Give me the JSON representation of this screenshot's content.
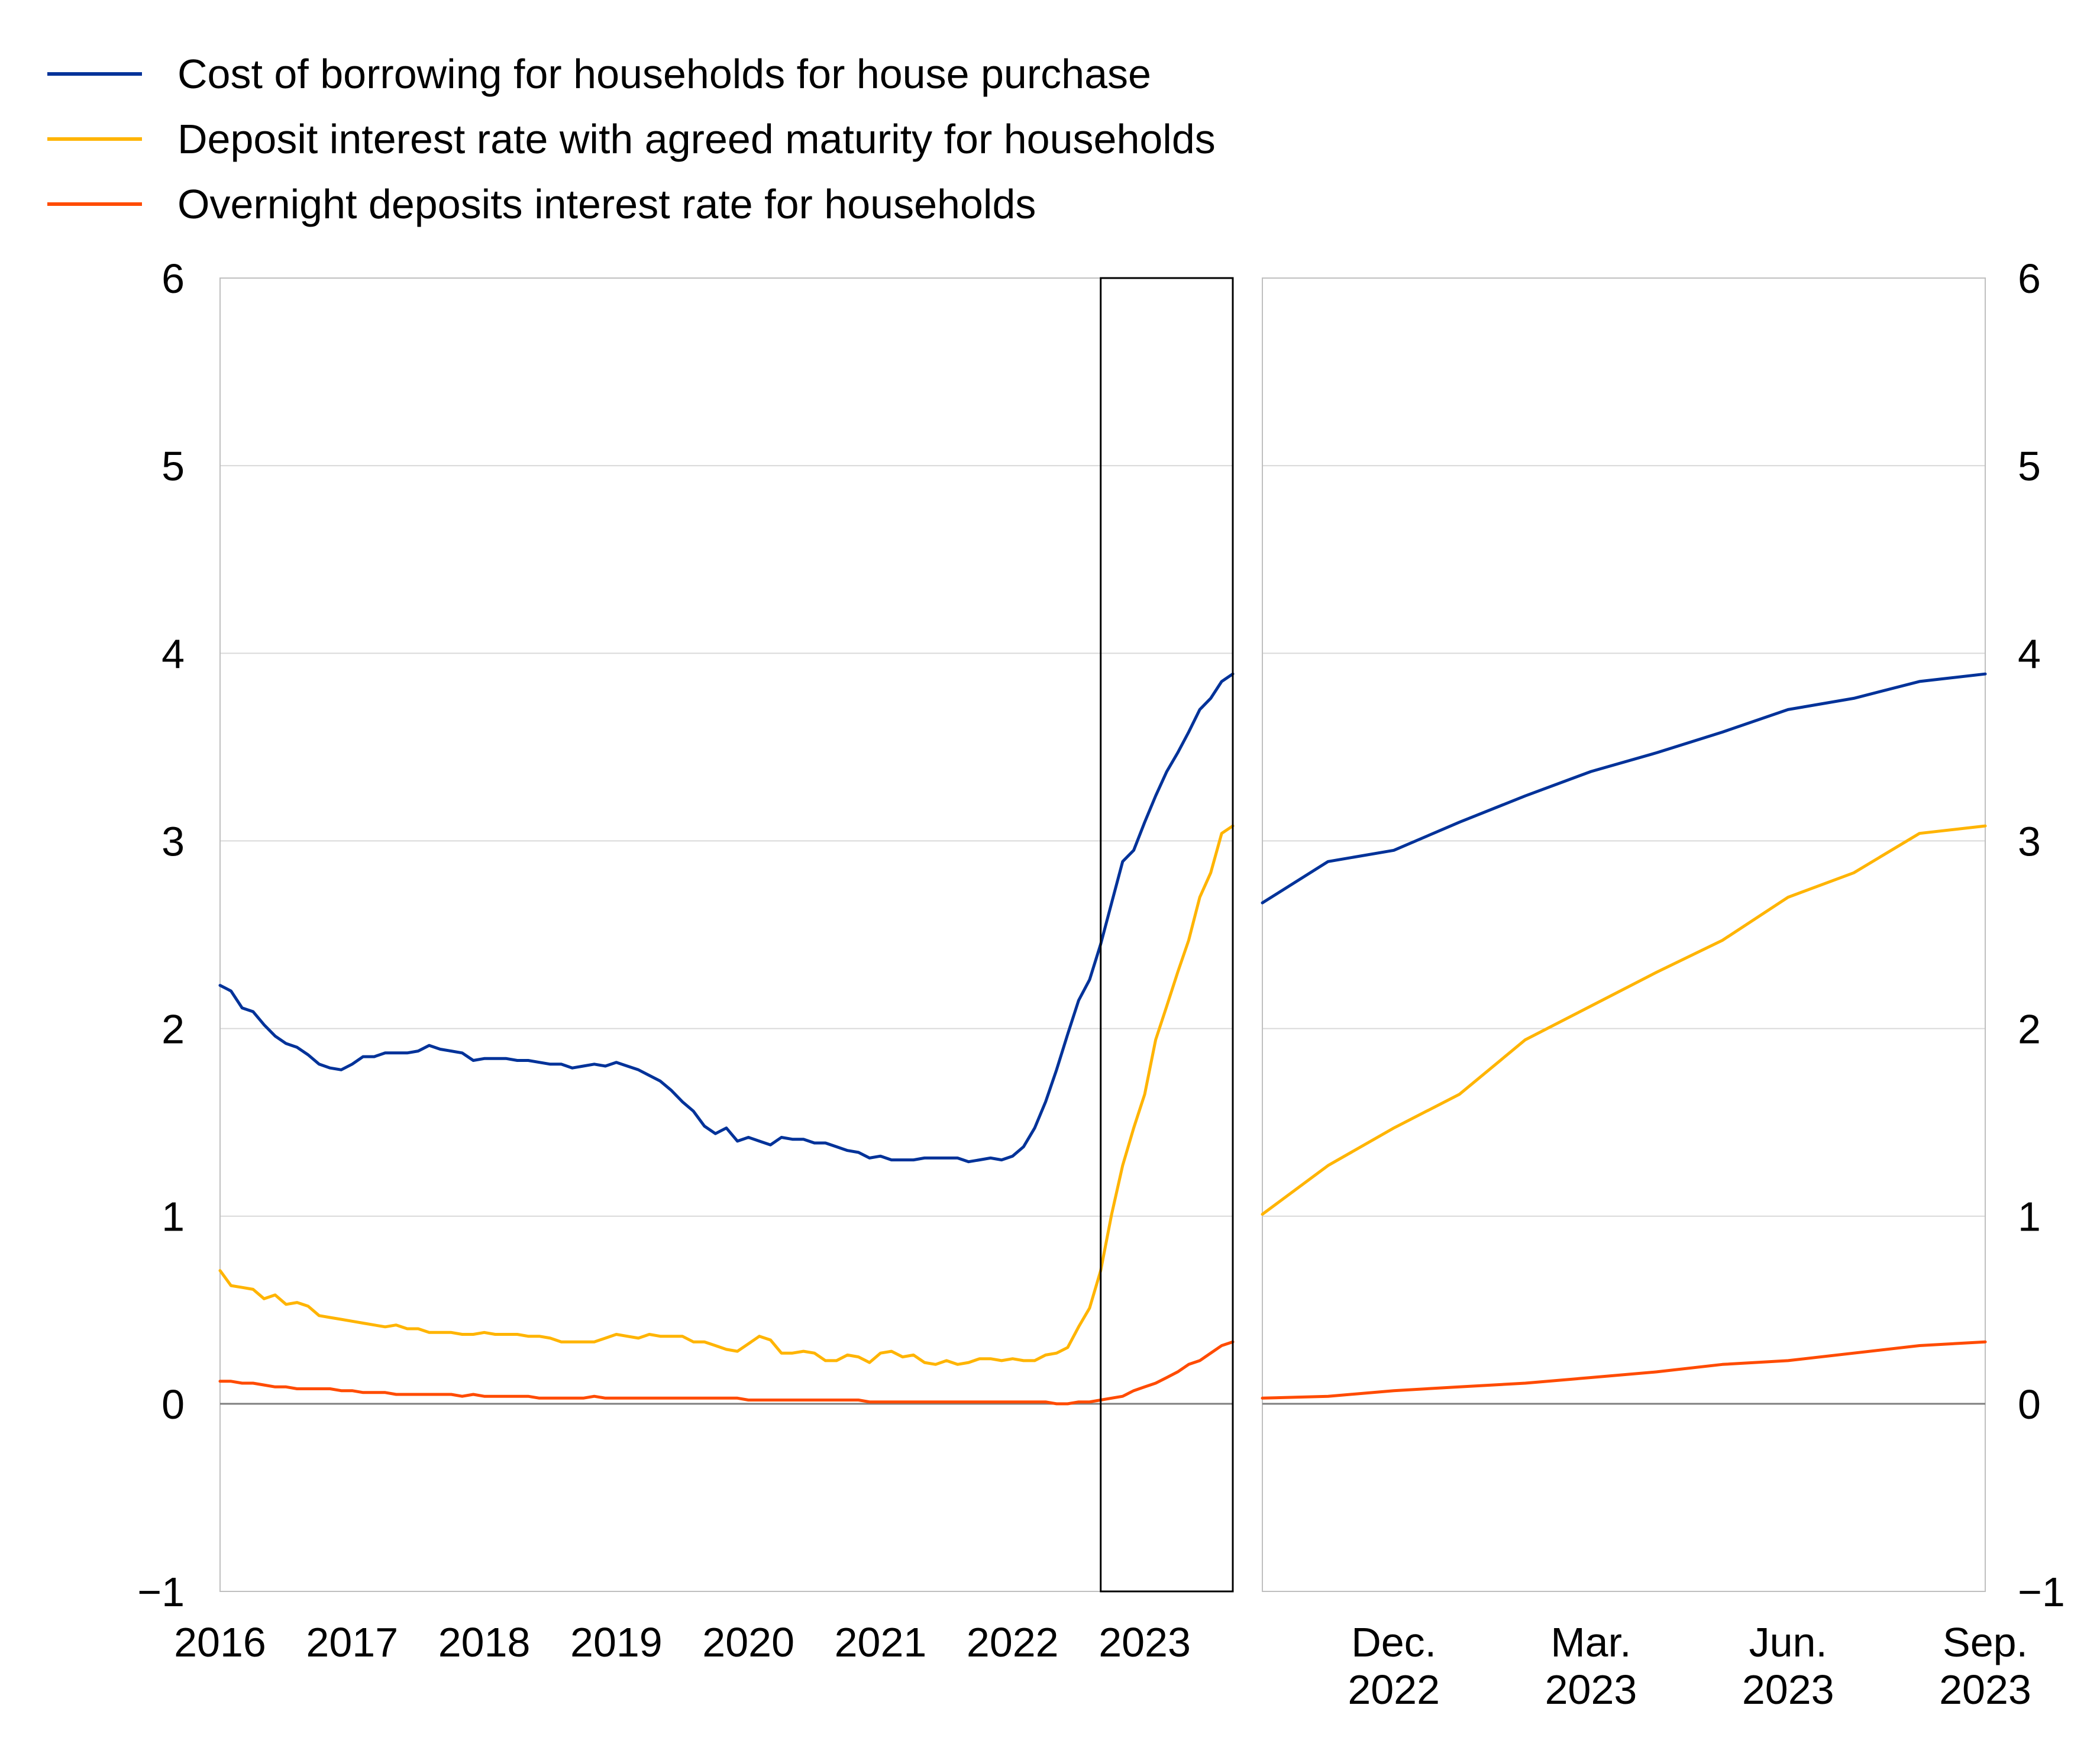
{
  "legend": [
    {
      "label": "Cost of borrowing for households for house purchase",
      "color": "#003299"
    },
    {
      "label": "Deposit interest rate with agreed maturity for households",
      "color": "#FFB400"
    },
    {
      "label": "Overnight deposits interest rate for households",
      "color": "#FF4B00"
    }
  ],
  "chart_data": [
    {
      "type": "line",
      "title": "",
      "ylim": [
        -1,
        6
      ],
      "yticks": [
        "−1",
        "0",
        "1",
        "2",
        "3",
        "4",
        "5",
        "6"
      ],
      "xlim": [
        2016.0,
        2023.667
      ],
      "xticks": [
        "2016",
        "2017",
        "2018",
        "2019",
        "2020",
        "2021",
        "2022",
        "2023"
      ],
      "grid": true,
      "legend_position": "top-left",
      "highlight_box": {
        "x_from": 2022.667,
        "x_to": 2023.667
      },
      "series": [
        {
          "name": "Cost of borrowing for households for house purchase",
          "color": "#003299",
          "x": [
            2016.0,
            2016.083,
            2016.167,
            2016.25,
            2016.333,
            2016.417,
            2016.5,
            2016.583,
            2016.667,
            2016.75,
            2016.833,
            2016.917,
            2017.0,
            2017.083,
            2017.167,
            2017.25,
            2017.333,
            2017.417,
            2017.5,
            2017.583,
            2017.667,
            2017.75,
            2017.833,
            2017.917,
            2018.0,
            2018.083,
            2018.167,
            2018.25,
            2018.333,
            2018.417,
            2018.5,
            2018.583,
            2018.667,
            2018.75,
            2018.833,
            2018.917,
            2019.0,
            2019.083,
            2019.167,
            2019.25,
            2019.333,
            2019.417,
            2019.5,
            2019.583,
            2019.667,
            2019.75,
            2019.833,
            2019.917,
            2020.0,
            2020.083,
            2020.167,
            2020.25,
            2020.333,
            2020.417,
            2020.5,
            2020.583,
            2020.667,
            2020.75,
            2020.833,
            2020.917,
            2021.0,
            2021.083,
            2021.167,
            2021.25,
            2021.333,
            2021.417,
            2021.5,
            2021.583,
            2021.667,
            2021.75,
            2021.833,
            2021.917,
            2022.0,
            2022.083,
            2022.167,
            2022.25,
            2022.333,
            2022.417,
            2022.5,
            2022.583,
            2022.667,
            2022.75,
            2022.833,
            2022.917,
            2023.0,
            2023.083,
            2023.167,
            2023.25,
            2023.333,
            2023.417,
            2023.5,
            2023.583,
            2023.667
          ],
          "y": [
            2.23,
            2.2,
            2.11,
            2.09,
            2.02,
            1.96,
            1.92,
            1.9,
            1.86,
            1.81,
            1.79,
            1.78,
            1.81,
            1.85,
            1.85,
            1.87,
            1.87,
            1.87,
            1.88,
            1.91,
            1.89,
            1.88,
            1.87,
            1.83,
            1.84,
            1.84,
            1.84,
            1.83,
            1.83,
            1.82,
            1.81,
            1.81,
            1.79,
            1.8,
            1.81,
            1.8,
            1.82,
            1.8,
            1.78,
            1.75,
            1.72,
            1.67,
            1.61,
            1.56,
            1.48,
            1.44,
            1.47,
            1.4,
            1.42,
            1.4,
            1.38,
            1.42,
            1.41,
            1.41,
            1.39,
            1.39,
            1.37,
            1.35,
            1.34,
            1.31,
            1.32,
            1.3,
            1.3,
            1.3,
            1.31,
            1.31,
            1.31,
            1.31,
            1.29,
            1.3,
            1.31,
            1.3,
            1.32,
            1.37,
            1.47,
            1.61,
            1.78,
            1.97,
            2.15,
            2.26,
            2.45,
            2.67,
            2.89,
            2.95,
            3.1,
            3.24,
            3.37,
            3.47,
            3.58,
            3.7,
            3.76,
            3.85,
            3.89
          ]
        },
        {
          "name": "Deposit interest rate with agreed maturity for households",
          "color": "#FFB400",
          "x": [
            2016.0,
            2016.083,
            2016.167,
            2016.25,
            2016.333,
            2016.417,
            2016.5,
            2016.583,
            2016.667,
            2016.75,
            2016.833,
            2016.917,
            2017.0,
            2017.083,
            2017.167,
            2017.25,
            2017.333,
            2017.417,
            2017.5,
            2017.583,
            2017.667,
            2017.75,
            2017.833,
            2017.917,
            2018.0,
            2018.083,
            2018.167,
            2018.25,
            2018.333,
            2018.417,
            2018.5,
            2018.583,
            2018.667,
            2018.75,
            2018.833,
            2018.917,
            2019.0,
            2019.083,
            2019.167,
            2019.25,
            2019.333,
            2019.417,
            2019.5,
            2019.583,
            2019.667,
            2019.75,
            2019.833,
            2019.917,
            2020.0,
            2020.083,
            2020.167,
            2020.25,
            2020.333,
            2020.417,
            2020.5,
            2020.583,
            2020.667,
            2020.75,
            2020.833,
            2020.917,
            2021.0,
            2021.083,
            2021.167,
            2021.25,
            2021.333,
            2021.417,
            2021.5,
            2021.583,
            2021.667,
            2021.75,
            2021.833,
            2021.917,
            2022.0,
            2022.083,
            2022.167,
            2022.25,
            2022.333,
            2022.417,
            2022.5,
            2022.583,
            2022.667,
            2022.75,
            2022.833,
            2022.917,
            2023.0,
            2023.083,
            2023.167,
            2023.25,
            2023.333,
            2023.417,
            2023.5,
            2023.583,
            2023.667
          ],
          "y": [
            0.71,
            0.63,
            0.62,
            0.61,
            0.56,
            0.58,
            0.53,
            0.54,
            0.52,
            0.47,
            0.46,
            0.45,
            0.44,
            0.43,
            0.42,
            0.41,
            0.42,
            0.4,
            0.4,
            0.38,
            0.38,
            0.38,
            0.37,
            0.37,
            0.38,
            0.37,
            0.37,
            0.37,
            0.36,
            0.36,
            0.35,
            0.33,
            0.33,
            0.33,
            0.33,
            0.35,
            0.37,
            0.36,
            0.35,
            0.37,
            0.36,
            0.36,
            0.36,
            0.33,
            0.33,
            0.31,
            0.29,
            0.28,
            0.32,
            0.36,
            0.34,
            0.27,
            0.27,
            0.28,
            0.27,
            0.23,
            0.23,
            0.26,
            0.25,
            0.22,
            0.27,
            0.28,
            0.25,
            0.26,
            0.22,
            0.21,
            0.23,
            0.21,
            0.22,
            0.24,
            0.24,
            0.23,
            0.24,
            0.23,
            0.23,
            0.26,
            0.27,
            0.3,
            0.41,
            0.51,
            0.71,
            1.01,
            1.27,
            1.47,
            1.65,
            1.94,
            2.12,
            2.3,
            2.47,
            2.7,
            2.83,
            3.04,
            3.08
          ]
        },
        {
          "name": "Overnight deposits interest rate for households",
          "color": "#FF4B00",
          "x": [
            2016.0,
            2016.083,
            2016.167,
            2016.25,
            2016.333,
            2016.417,
            2016.5,
            2016.583,
            2016.667,
            2016.75,
            2016.833,
            2016.917,
            2017.0,
            2017.083,
            2017.167,
            2017.25,
            2017.333,
            2017.417,
            2017.5,
            2017.583,
            2017.667,
            2017.75,
            2017.833,
            2017.917,
            2018.0,
            2018.083,
            2018.167,
            2018.25,
            2018.333,
            2018.417,
            2018.5,
            2018.583,
            2018.667,
            2018.75,
            2018.833,
            2018.917,
            2019.0,
            2019.083,
            2019.167,
            2019.25,
            2019.333,
            2019.417,
            2019.5,
            2019.583,
            2019.667,
            2019.75,
            2019.833,
            2019.917,
            2020.0,
            2020.083,
            2020.167,
            2020.25,
            2020.333,
            2020.417,
            2020.5,
            2020.583,
            2020.667,
            2020.75,
            2020.833,
            2020.917,
            2021.0,
            2021.083,
            2021.167,
            2021.25,
            2021.333,
            2021.417,
            2021.5,
            2021.583,
            2021.667,
            2021.75,
            2021.833,
            2021.917,
            2022.0,
            2022.083,
            2022.167,
            2022.25,
            2022.333,
            2022.417,
            2022.5,
            2022.583,
            2022.667,
            2022.75,
            2022.833,
            2022.917,
            2023.0,
            2023.083,
            2023.167,
            2023.25,
            2023.333,
            2023.417,
            2023.5,
            2023.583,
            2023.667
          ],
          "y": [
            0.12,
            0.12,
            0.11,
            0.11,
            0.1,
            0.09,
            0.09,
            0.08,
            0.08,
            0.08,
            0.08,
            0.07,
            0.07,
            0.06,
            0.06,
            0.06,
            0.05,
            0.05,
            0.05,
            0.05,
            0.05,
            0.05,
            0.04,
            0.05,
            0.04,
            0.04,
            0.04,
            0.04,
            0.04,
            0.03,
            0.03,
            0.03,
            0.03,
            0.03,
            0.04,
            0.03,
            0.03,
            0.03,
            0.03,
            0.03,
            0.03,
            0.03,
            0.03,
            0.03,
            0.03,
            0.03,
            0.03,
            0.03,
            0.02,
            0.02,
            0.02,
            0.02,
            0.02,
            0.02,
            0.02,
            0.02,
            0.02,
            0.02,
            0.02,
            0.01,
            0.01,
            0.01,
            0.01,
            0.01,
            0.01,
            0.01,
            0.01,
            0.01,
            0.01,
            0.01,
            0.01,
            0.01,
            0.01,
            0.01,
            0.01,
            0.01,
            0.0,
            0.0,
            0.01,
            0.01,
            0.02,
            0.03,
            0.04,
            0.07,
            0.09,
            0.11,
            0.14,
            0.17,
            0.21,
            0.23,
            0.27,
            0.31,
            0.33
          ]
        }
      ]
    },
    {
      "type": "line",
      "title": "",
      "ylim": [
        -1,
        6
      ],
      "yticks": [
        "−1",
        "0",
        "1",
        "2",
        "3",
        "4",
        "5",
        "6"
      ],
      "xlim": [
        0,
        11
      ],
      "xticks": [
        {
          "x": 2,
          "line1": "Dec.",
          "line2": "2022"
        },
        {
          "x": 5,
          "line1": "Mar.",
          "line2": "2023"
        },
        {
          "x": 8,
          "line1": "Jun.",
          "line2": "2023"
        },
        {
          "x": 11,
          "line1": "Sep.",
          "line2": "2023"
        }
      ],
      "grid": true,
      "series": [
        {
          "name": "Cost of borrowing for households for house purchase",
          "color": "#003299",
          "x": [
            0,
            1,
            2,
            3,
            4,
            5,
            6,
            7,
            8,
            9,
            10,
            11
          ],
          "y": [
            2.67,
            2.89,
            2.95,
            3.1,
            3.24,
            3.37,
            3.47,
            3.58,
            3.7,
            3.76,
            3.85,
            3.89
          ]
        },
        {
          "name": "Deposit interest rate with agreed maturity for households",
          "color": "#FFB400",
          "x": [
            0,
            1,
            2,
            3,
            4,
            5,
            6,
            7,
            8,
            9,
            10,
            11
          ],
          "y": [
            1.01,
            1.27,
            1.47,
            1.65,
            1.94,
            2.12,
            2.3,
            2.47,
            2.7,
            2.83,
            3.04,
            3.08
          ]
        },
        {
          "name": "Overnight deposits interest rate for households",
          "color": "#FF4B00",
          "x": [
            0,
            1,
            2,
            3,
            4,
            5,
            6,
            7,
            8,
            9,
            10,
            11
          ],
          "y": [
            0.03,
            0.04,
            0.07,
            0.09,
            0.11,
            0.14,
            0.17,
            0.21,
            0.23,
            0.27,
            0.31,
            0.33
          ]
        }
      ]
    }
  ]
}
